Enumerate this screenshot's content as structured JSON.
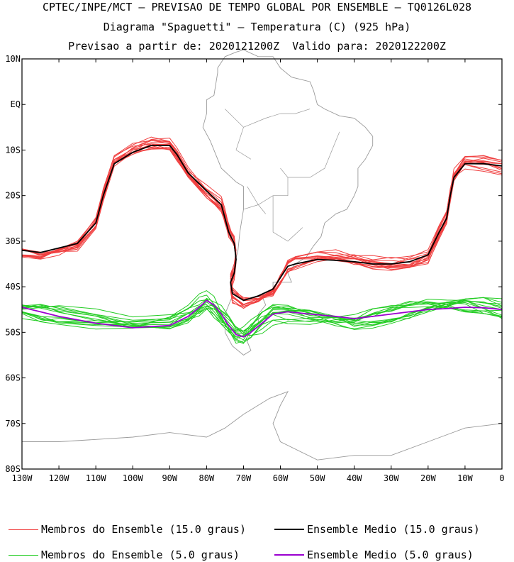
{
  "title": {
    "line1": "CPTEC/INPE/MCT — PREVISAO DE TEMPO GLOBAL POR ENSEMBLE — TQ0126L028",
    "line2": "Diagrama \"Spaguetti\" — Temperatura (C) (925 hPa)",
    "line3": "Previsao a partir de: 2020121200Z  Valido para: 2020122200Z"
  },
  "axes": {
    "lat_labels": [
      "10N",
      "EQ",
      "10S",
      "20S",
      "30S",
      "40S",
      "50S",
      "60S",
      "70S",
      "80S"
    ],
    "lat_values": [
      10,
      0,
      -10,
      -20,
      -30,
      -40,
      -50,
      -60,
      -70,
      -80
    ],
    "lon_labels": [
      "130W",
      "120W",
      "110W",
      "100W",
      "90W",
      "80W",
      "70W",
      "60W",
      "50W",
      "40W",
      "30W",
      "20W",
      "10W",
      "0"
    ],
    "lon_values": [
      -130,
      -120,
      -110,
      -100,
      -90,
      -80,
      -70,
      -60,
      -50,
      -40,
      -30,
      -20,
      -10,
      0
    ],
    "lon_range": [
      -130,
      0
    ],
    "lat_range": [
      -80,
      10
    ]
  },
  "colors": {
    "members_15": "#f04040",
    "mean_15": "#000000",
    "members_5": "#22cc22",
    "mean_5": "#9b00d0",
    "coast": "#9a9a9a",
    "frame": "#000000"
  },
  "legend": [
    {
      "label": "Membros do Ensemble (15.0 graus)",
      "color_key": "members_15"
    },
    {
      "label": "Ensemble Medio (15.0 graus)",
      "color_key": "mean_15"
    },
    {
      "label": "Membros do Ensemble (5.0 graus)",
      "color_key": "members_5"
    },
    {
      "label": "Ensemble Medio (5.0 graus)",
      "color_key": "mean_5"
    }
  ],
  "chart_data": {
    "type": "line",
    "x_units": "longitude (deg, negative = W)",
    "y_units": "latitude (deg, negative = S)",
    "series": [
      {
        "name": "Ensemble Medio (15.0 graus)",
        "x": [
          -130,
          -125,
          -120,
          -115,
          -110,
          -108,
          -105,
          -100,
          -95,
          -90,
          -88,
          -85,
          -80,
          -76,
          -75,
          -74,
          -72.5,
          -72,
          -72.5,
          -73.5,
          -73,
          -70,
          -66,
          -62,
          -60,
          -58,
          -56,
          -50,
          -45,
          -40,
          -35,
          -30,
          -25,
          -20,
          -17,
          -15,
          -14,
          -13,
          -10,
          -5,
          0
        ],
        "y": [
          -32,
          -32.5,
          -31.5,
          -30.5,
          -26,
          -20,
          -13,
          -10.5,
          -9,
          -9,
          -11,
          -15,
          -19,
          -22,
          -25,
          -28,
          -30.5,
          -34,
          -37,
          -39,
          -41.5,
          -43,
          -42,
          -40.5,
          -38,
          -35.5,
          -35,
          -34,
          -34.2,
          -34.5,
          -35,
          -35,
          -34.5,
          -33,
          -28,
          -25,
          -20,
          -16,
          -13,
          -13,
          -13.5
        ]
      },
      {
        "name": "Ensemble Medio (5.0 graus)",
        "x": [
          -130,
          -125,
          -120,
          -110,
          -100,
          -90,
          -85,
          -82,
          -80,
          -78,
          -76,
          -74,
          -72,
          -70,
          -68,
          -65,
          -62,
          -58,
          -52,
          -45,
          -40,
          -35,
          -30,
          -25,
          -20,
          -15,
          -10,
          -5,
          0
        ],
        "y": [
          -44.5,
          -45.5,
          -46.5,
          -48,
          -49,
          -48.5,
          -46.5,
          -44.5,
          -43,
          -44,
          -46,
          -48.5,
          -50.5,
          -51,
          -50,
          -48,
          -46,
          -45.5,
          -46,
          -46.5,
          -47,
          -46.5,
          -46,
          -45.5,
          -45,
          -44.8,
          -44.5,
          -44.6,
          -45
        ]
      }
    ],
    "title": "",
    "xlim": [
      -130,
      0
    ],
    "ylim": [
      -80,
      10
    ]
  }
}
